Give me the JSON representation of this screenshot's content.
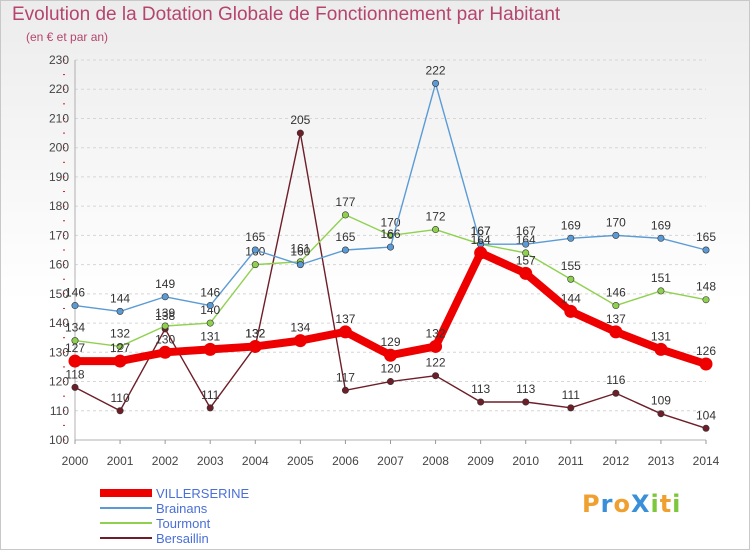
{
  "header": {
    "title": "Evolution de la Dotation Globale de Fonctionnement par Habitant",
    "subtitle": "(en € et par an)"
  },
  "logo": {
    "text": "ProXiti",
    "letters": [
      "P",
      "r",
      "o",
      "X",
      "i",
      "t",
      "i"
    ],
    "colors": [
      "#f0a030",
      "#3a90d8",
      "#f0a030",
      "#3a90d8",
      "#7cc83a",
      "#f0a030",
      "#7cc83a"
    ]
  },
  "chart_data": {
    "type": "line",
    "title": "Evolution de la Dotation Globale de Fonctionnement par Habitant",
    "subtitle": "(en € et par an)",
    "x": [
      2000,
      2001,
      2002,
      2003,
      2004,
      2005,
      2006,
      2007,
      2008,
      2009,
      2010,
      2011,
      2012,
      2013,
      2014
    ],
    "ylim": [
      100,
      230
    ],
    "yticks": [
      100,
      110,
      120,
      130,
      140,
      150,
      160,
      170,
      180,
      190,
      200,
      210,
      220,
      230
    ],
    "grid": "horizontal-dashed",
    "legend_position": "bottom-left",
    "series": [
      {
        "name": "VILLERSERINE",
        "color": "#ee0000",
        "emphasis": true,
        "values": [
          127,
          127,
          130,
          131,
          132,
          134,
          137,
          129,
          132,
          164,
          157,
          144,
          137,
          131,
          126
        ]
      },
      {
        "name": "Brainans",
        "color": "#5b9bd5",
        "values": [
          146,
          144,
          149,
          146,
          165,
          160,
          165,
          166,
          222,
          167,
          167,
          169,
          170,
          169,
          165
        ]
      },
      {
        "name": "Tourmont",
        "color": "#8fd14f",
        "values": [
          134,
          132,
          139,
          140,
          160,
          161,
          177,
          170,
          172,
          167,
          164,
          155,
          146,
          151,
          148
        ]
      },
      {
        "name": "Bersaillin",
        "color": "#6e1e28",
        "values": [
          118,
          110,
          138,
          111,
          132,
          205,
          117,
          120,
          122,
          113,
          113,
          111,
          116,
          109,
          104
        ]
      }
    ],
    "series_draw_order": [
      3,
      2,
      1,
      0
    ]
  }
}
